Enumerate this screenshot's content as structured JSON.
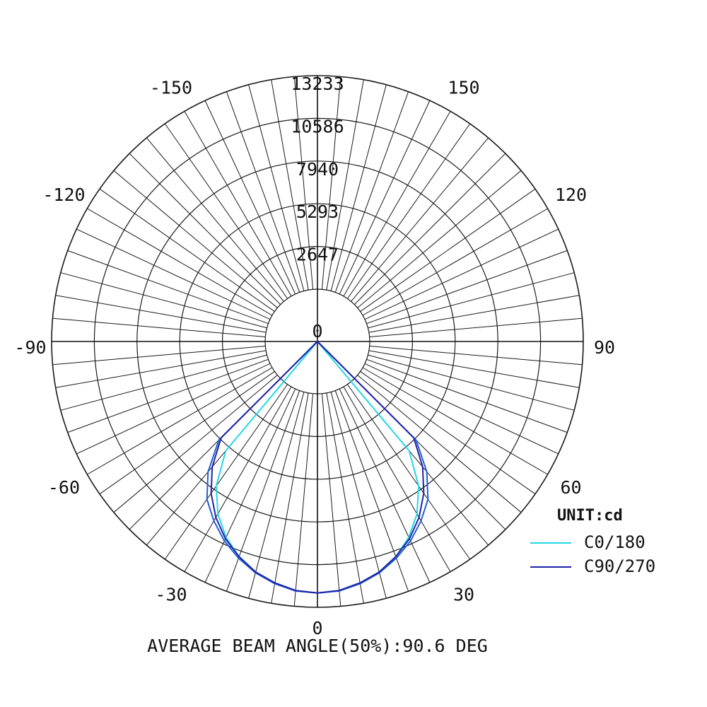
{
  "chart_data": {
    "type": "polar",
    "radial_ticks": [
      "0",
      "2647",
      "5293",
      "7940",
      "10586",
      "13233"
    ],
    "radial_max": 13233,
    "angle_ticks": [
      {
        "label": "0",
        "angle": 0
      },
      {
        "label": "30",
        "angle": 30
      },
      {
        "label": "60",
        "angle": 60
      },
      {
        "label": "90",
        "angle": 90
      },
      {
        "label": "120",
        "angle": 120
      },
      {
        "label": "150",
        "angle": 150
      },
      {
        "label": "-30",
        "angle": -30
      },
      {
        "label": "-60",
        "angle": -60
      },
      {
        "label": "-90",
        "angle": -90
      },
      {
        "label": "-120",
        "angle": -120
      },
      {
        "label": "-150",
        "angle": -150
      }
    ],
    "angle_spoke_step": 5,
    "unit_label": "UNIT:cd",
    "series": [
      {
        "name": "C0/180",
        "color": "#22d8e6",
        "angles": [
          -90,
          -85,
          -80,
          -75,
          -70,
          -65,
          -60,
          -55,
          -50,
          -45,
          -40,
          -35,
          -30,
          -25,
          -20,
          -15,
          -10,
          -5,
          0,
          5,
          10,
          15,
          20,
          25,
          30,
          35,
          40,
          45,
          50,
          55,
          60,
          65,
          70,
          75,
          80,
          85,
          90
        ],
        "values": [
          0,
          0,
          0,
          0,
          0,
          0,
          0,
          0,
          0,
          0,
          5600,
          7700,
          9100,
          10150,
          10950,
          11550,
          11950,
          12250,
          12350,
          12250,
          11950,
          11550,
          10950,
          10150,
          9100,
          7700,
          5600,
          0,
          0,
          0,
          0,
          0,
          0,
          0,
          0,
          0,
          0
        ]
      },
      {
        "name": "C90/270",
        "color": "#2020a8",
        "angles": [
          -90,
          -85,
          -80,
          -75,
          -70,
          -65,
          -60,
          -55,
          -50,
          -45,
          -40,
          -35,
          -30,
          -25,
          -20,
          -15,
          -10,
          -5,
          0,
          5,
          10,
          15,
          20,
          25,
          30,
          35,
          40,
          45,
          50,
          55,
          60,
          65,
          70,
          75,
          80,
          85,
          90
        ],
        "values": [
          0,
          0,
          0,
          0,
          0,
          0,
          0,
          0,
          0,
          5200,
          6900,
          8250,
          9350,
          10250,
          10950,
          11550,
          11950,
          12250,
          12350,
          12250,
          11950,
          11550,
          10950,
          10250,
          9350,
          8250,
          6900,
          5200,
          0,
          0,
          0,
          0,
          0,
          0,
          0,
          0,
          0
        ]
      },
      {
        "name": "",
        "color": "#1f5fd6",
        "angles": [
          -90,
          -85,
          -80,
          -75,
          -70,
          -65,
          -60,
          -55,
          -50,
          -45,
          -40,
          -35,
          -30,
          -25,
          -20,
          -15,
          -10,
          -5,
          0,
          5,
          10,
          15,
          20,
          25,
          30,
          35,
          40,
          45,
          50,
          55,
          60,
          65,
          70,
          75,
          80,
          85,
          90
        ],
        "values": [
          0,
          0,
          0,
          0,
          0,
          0,
          0,
          0,
          0,
          5400,
          7300,
          8700,
          9600,
          10400,
          11050,
          11600,
          12000,
          12280,
          12350,
          12280,
          12000,
          11600,
          11050,
          10400,
          9600,
          8700,
          7300,
          5400,
          0,
          0,
          0,
          0,
          0,
          0,
          0,
          0,
          0
        ]
      }
    ],
    "footer": "AVERAGE BEAM ANGLE(50%):90.6 DEG"
  }
}
